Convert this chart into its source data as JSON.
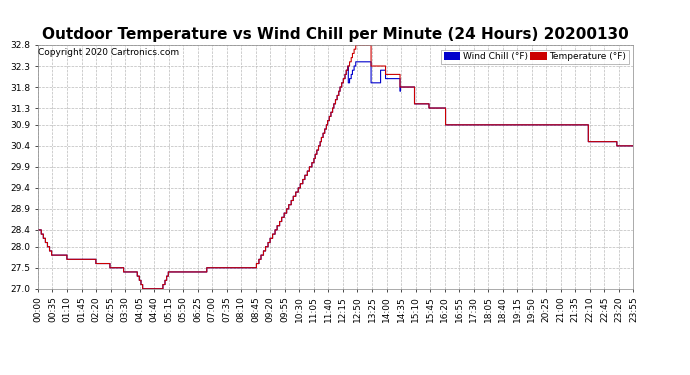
{
  "title": "Outdoor Temperature vs Wind Chill per Minute (24 Hours) 20200130",
  "copyright": "Copyright 2020 Cartronics.com",
  "legend_wind_chill": "Wind Chill (°F)",
  "legend_temperature": "Temperature (°F)",
  "ylim": [
    27.0,
    32.8
  ],
  "yticks": [
    27.0,
    27.5,
    28.0,
    28.4,
    28.9,
    29.4,
    29.9,
    30.4,
    30.9,
    31.3,
    31.8,
    32.3,
    32.8
  ],
  "wind_chill_color": "#0000CC",
  "temperature_color": "#CC0000",
  "background_color": "#FFFFFF",
  "plot_bg_color": "#FFFFFF",
  "grid_color": "#BBBBBB",
  "title_fontsize": 11,
  "tick_fontsize": 6.5,
  "n_minutes": 1440,
  "xtick_labels": [
    "00:00",
    "00:35",
    "01:10",
    "01:45",
    "02:20",
    "02:55",
    "03:30",
    "04:05",
    "04:40",
    "05:15",
    "05:50",
    "06:25",
    "07:00",
    "07:35",
    "08:10",
    "08:45",
    "09:20",
    "09:55",
    "10:30",
    "11:05",
    "11:40",
    "12:15",
    "12:50",
    "13:25",
    "14:00",
    "14:35",
    "15:10",
    "15:45",
    "16:20",
    "16:55",
    "17:30",
    "18:05",
    "18:40",
    "19:15",
    "19:50",
    "20:25",
    "21:00",
    "21:35",
    "22:10",
    "22:45",
    "23:20",
    "23:55"
  ]
}
